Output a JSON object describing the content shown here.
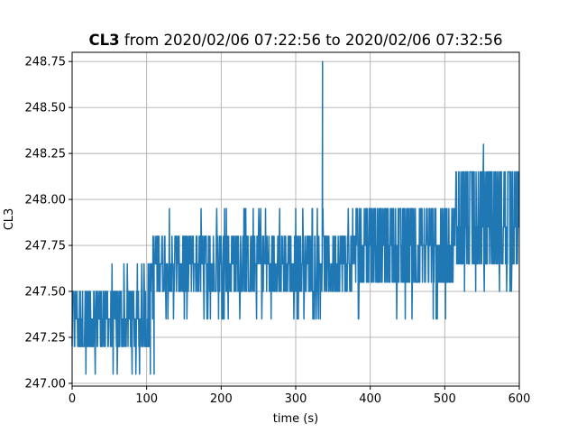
{
  "chart_data": {
    "type": "line",
    "title_bold": "CL3",
    "title_rest": " from 2020/02/06 07:22:56 to 2020/02/06 07:32:56",
    "xlabel": "time (s)",
    "ylabel": "CL3",
    "xlim": [
      0,
      600
    ],
    "ylim": [
      246.985,
      248.8
    ],
    "xticks": [
      0,
      100,
      200,
      300,
      400,
      500,
      600
    ],
    "yticks": [
      247.0,
      247.25,
      247.5,
      247.75,
      248.0,
      248.25,
      248.5,
      248.75
    ],
    "xtick_labels": [
      "0",
      "100",
      "200",
      "300",
      "400",
      "500",
      "600"
    ],
    "ytick_labels": [
      "247.00",
      "247.25",
      "247.50",
      "247.75",
      "248.00",
      "248.25",
      "248.50",
      "248.75"
    ],
    "grid": true,
    "series": [
      {
        "color": "#1f77b4",
        "segments": [
          {
            "x": [
              0,
              105
            ],
            "base": 247.35,
            "low": 247.2,
            "high": 247.5,
            "spike_low": 247.05,
            "spike_high": 247.65
          },
          {
            "x": [
              105,
              380
            ],
            "base": 247.65,
            "low": 247.5,
            "high": 247.8,
            "spike_low": 247.35,
            "spike_high": 247.95
          },
          {
            "x": [
              380,
              515
            ],
            "base": 247.75,
            "low": 247.55,
            "high": 247.95,
            "spike_low": 247.35,
            "spike_high": 247.95
          },
          {
            "x": [
              515,
              600
            ],
            "base": 247.85,
            "low": 247.65,
            "high": 248.15,
            "spike_low": 247.5,
            "spike_high": 248.15
          }
        ],
        "peaks": [
          {
            "x": 336,
            "y": 248.75
          },
          {
            "x": 552,
            "y": 248.3
          },
          {
            "x": 105,
            "y": 247.05
          },
          {
            "x": 110,
            "y": 247.05
          }
        ]
      }
    ]
  }
}
